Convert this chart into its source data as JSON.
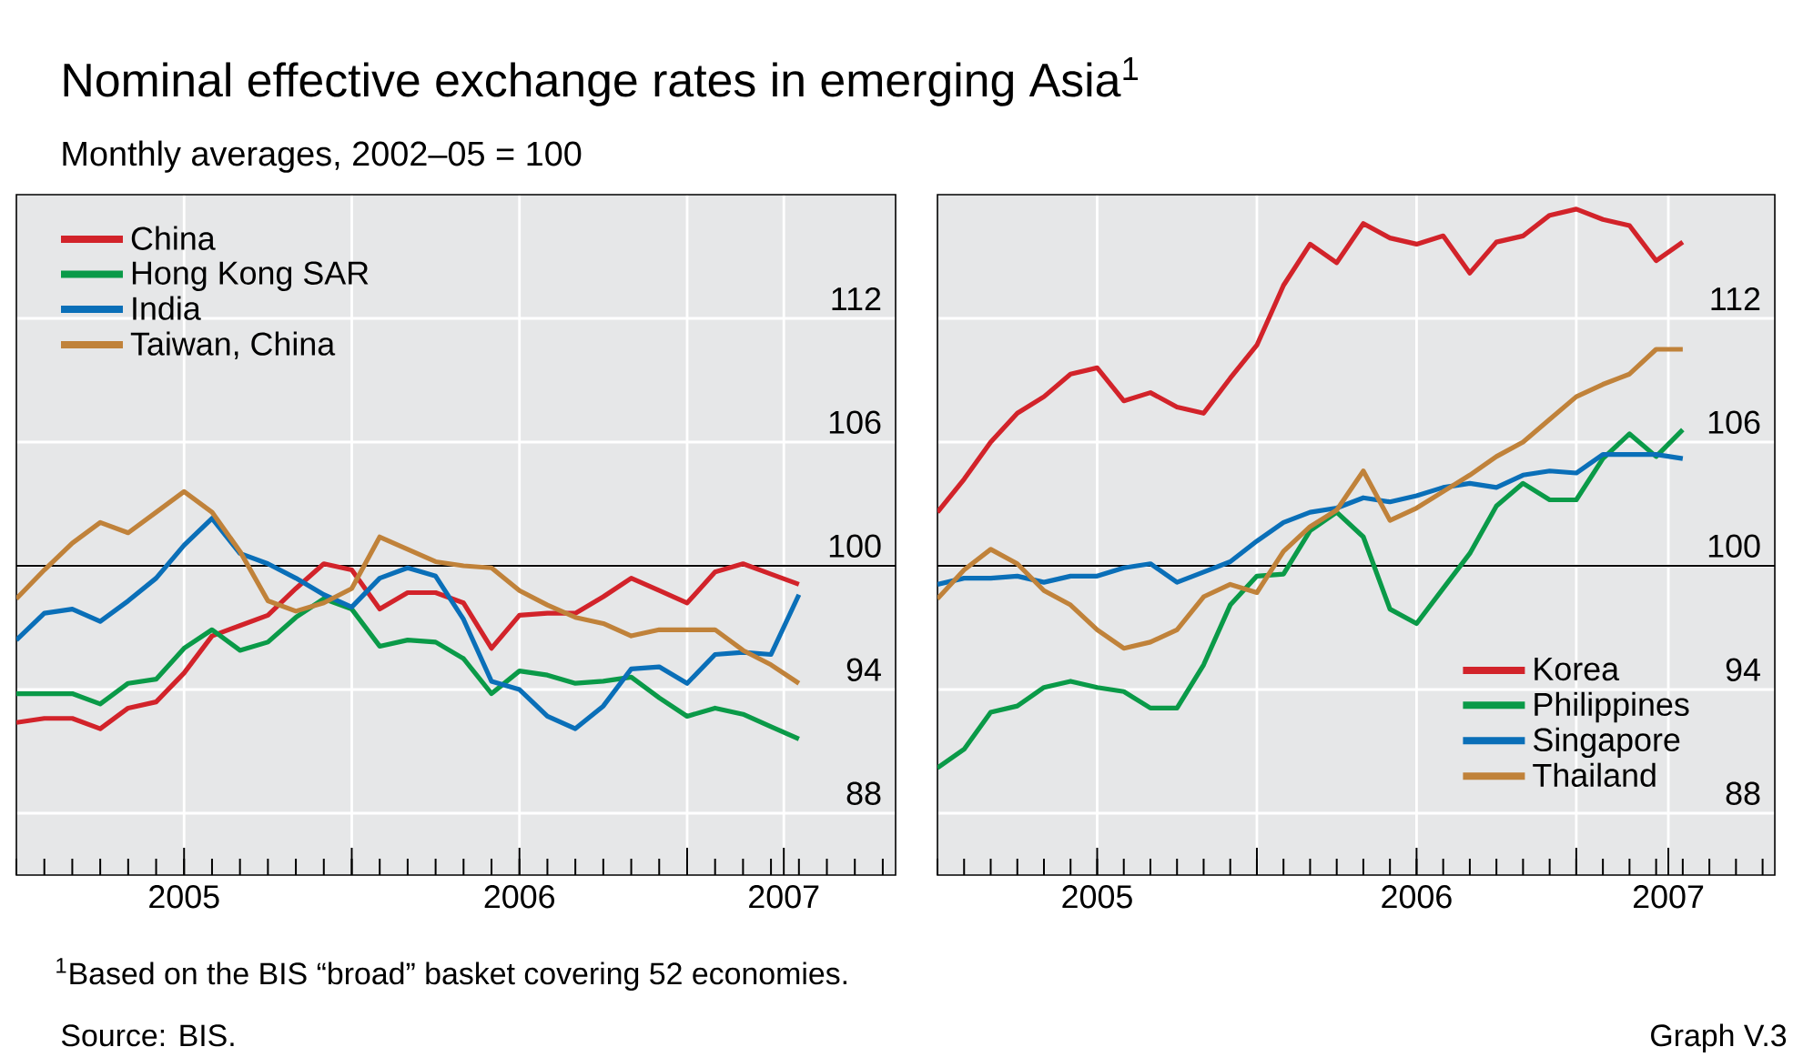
{
  "chart_data": [
    {
      "type": "line",
      "title": "Nominal effective exchange rates in emerging Asia$^{1}$",
      "subtitle": "Monthly averages, 2002–05 = 100",
      "annotations": [
        "$^{1}$Based on the BIS “broad” basket covering 52 economies.",
        "Source: BIS.",
        "Graph V.3"
      ],
      "x": [
        "2005-01",
        "2005-02",
        "2005-03",
        "2005-04",
        "2005-05",
        "2005-06",
        "2005-07",
        "2005-08",
        "2005-09",
        "2005-10",
        "2005-11",
        "2005-12",
        "2006-01",
        "2006-02",
        "2006-03",
        "2006-04",
        "2006-05",
        "2006-06",
        "2006-07",
        "2006-08",
        "2006-09",
        "2006-10",
        "2006-11",
        "2006-12",
        "2007-01",
        "2007-02",
        "2007-03",
        "2007-04",
        "2007-05"
      ],
      "series": [
        {
          "name": "China",
          "color": "#d2232a",
          "values": [
            92.4,
            92.6,
            92.6,
            92.1,
            93.1,
            93.4,
            94.8,
            96.6,
            97.1,
            97.6,
            98.9,
            100.1,
            99.8,
            97.9,
            98.7,
            98.7,
            98.2,
            96.0,
            97.6,
            97.7,
            97.7,
            98.5,
            99.4,
            98.8,
            98.2,
            99.7,
            100.1,
            99.6,
            99.1
          ]
        },
        {
          "name": "Hong Kong SAR",
          "color": "#0a9a48",
          "values": [
            93.8,
            93.8,
            93.8,
            93.3,
            94.3,
            94.5,
            96.0,
            96.9,
            95.9,
            96.3,
            97.5,
            98.4,
            97.9,
            96.1,
            96.4,
            96.3,
            95.5,
            93.8,
            94.9,
            94.7,
            94.3,
            94.4,
            94.6,
            93.6,
            92.7,
            93.1,
            92.8,
            92.2,
            91.6
          ]
        },
        {
          "name": "India",
          "color": "#0a6fb8",
          "values": [
            96.4,
            97.7,
            97.9,
            97.3,
            98.3,
            99.4,
            101.0,
            102.3,
            100.6,
            100.1,
            99.4,
            98.6,
            98.0,
            99.4,
            99.9,
            99.5,
            97.4,
            94.4,
            94.0,
            92.7,
            92.1,
            93.2,
            95.0,
            95.1,
            94.3,
            95.7,
            95.8,
            95.7,
            98.6
          ]
        },
        {
          "name": "Taiwan, China",
          "color": "#c0823a",
          "values": [
            98.4,
            99.8,
            101.1,
            102.1,
            101.6,
            102.6,
            103.6,
            102.6,
            100.7,
            98.3,
            97.8,
            98.2,
            98.9,
            101.4,
            100.8,
            100.2,
            100.0,
            99.9,
            98.8,
            98.1,
            97.5,
            97.2,
            96.6,
            96.9,
            96.9,
            96.9,
            95.9,
            95.2,
            94.3
          ]
        }
      ],
      "xlim": [
        "2005-01",
        "2007-08-15"
      ],
      "xticks": [
        {
          "value": "2005-07",
          "label": "2005"
        },
        {
          "value": "2006-01",
          "label": null
        },
        {
          "value": "2006-07",
          "label": "2006"
        },
        {
          "value": "2007-01",
          "label": null
        },
        {
          "value": "2007-04-15",
          "label": "2007"
        }
      ],
      "ylim": [
        85,
        118
      ],
      "yticks": [
        88,
        94,
        100,
        106,
        112
      ],
      "ref_lines": [
        {
          "axis": "y",
          "value": 100,
          "color": "#000000"
        }
      ],
      "grid": true,
      "legend": "top left"
    },
    {
      "type": "line",
      "x": [
        "2005-01",
        "2005-02",
        "2005-03",
        "2005-04",
        "2005-05",
        "2005-06",
        "2005-07",
        "2005-08",
        "2005-09",
        "2005-10",
        "2005-11",
        "2005-12",
        "2006-01",
        "2006-02",
        "2006-03",
        "2006-04",
        "2006-05",
        "2006-06",
        "2006-07",
        "2006-08",
        "2006-09",
        "2006-10",
        "2006-11",
        "2006-12",
        "2007-01",
        "2007-02",
        "2007-03",
        "2007-04",
        "2007-05"
      ],
      "series": [
        {
          "name": "Korea",
          "color": "#d2232a",
          "values": [
            102.6,
            104.2,
            106.0,
            107.4,
            108.2,
            109.3,
            109.6,
            108.0,
            108.4,
            107.7,
            107.4,
            109.1,
            110.7,
            113.6,
            115.6,
            114.7,
            116.6,
            115.9,
            115.6,
            116.0,
            114.2,
            115.7,
            116.0,
            117.0,
            117.3,
            116.8,
            116.5,
            114.8,
            115.7
          ]
        },
        {
          "name": "Philippines",
          "color": "#0a9a48",
          "values": [
            90.2,
            91.1,
            92.9,
            93.2,
            94.1,
            94.4,
            94.1,
            93.9,
            93.1,
            93.1,
            95.2,
            98.1,
            99.5,
            99.6,
            101.7,
            102.6,
            101.4,
            97.9,
            97.2,
            98.9,
            100.6,
            102.9,
            104.0,
            103.2,
            103.2,
            105.2,
            106.4,
            105.3,
            106.6
          ]
        },
        {
          "name": "Singapore",
          "color": "#0a6fb8",
          "values": [
            99.1,
            99.4,
            99.4,
            99.5,
            99.2,
            99.5,
            99.5,
            99.9,
            100.1,
            99.2,
            99.7,
            100.2,
            101.2,
            102.1,
            102.6,
            102.8,
            103.3,
            103.1,
            103.4,
            103.8,
            104.0,
            103.8,
            104.4,
            104.6,
            104.5,
            105.4,
            105.4,
            105.4,
            105.2
          ]
        },
        {
          "name": "Thailand",
          "color": "#c0823a",
          "values": [
            98.4,
            99.8,
            100.8,
            100.1,
            98.8,
            98.1,
            96.9,
            96.0,
            96.3,
            96.9,
            98.5,
            99.1,
            98.7,
            100.7,
            101.9,
            102.7,
            104.6,
            102.2,
            102.8,
            103.6,
            104.4,
            105.3,
            106.0,
            107.1,
            108.2,
            108.8,
            109.3,
            110.5,
            110.5
          ]
        }
      ],
      "xlim": [
        "2005-01",
        "2007-08-15"
      ],
      "xticks": [
        {
          "value": "2005-07",
          "label": "2005"
        },
        {
          "value": "2006-01",
          "label": null
        },
        {
          "value": "2006-07",
          "label": "2006"
        },
        {
          "value": "2007-01",
          "label": null
        },
        {
          "value": "2007-04-15",
          "label": "2007"
        }
      ],
      "ylim": [
        85,
        118
      ],
      "yticks": [
        88,
        94,
        100,
        106,
        112
      ],
      "ref_lines": [
        {
          "axis": "y",
          "value": 100,
          "color": "#000000"
        }
      ],
      "grid": true,
      "legend": "bottom right"
    }
  ]
}
